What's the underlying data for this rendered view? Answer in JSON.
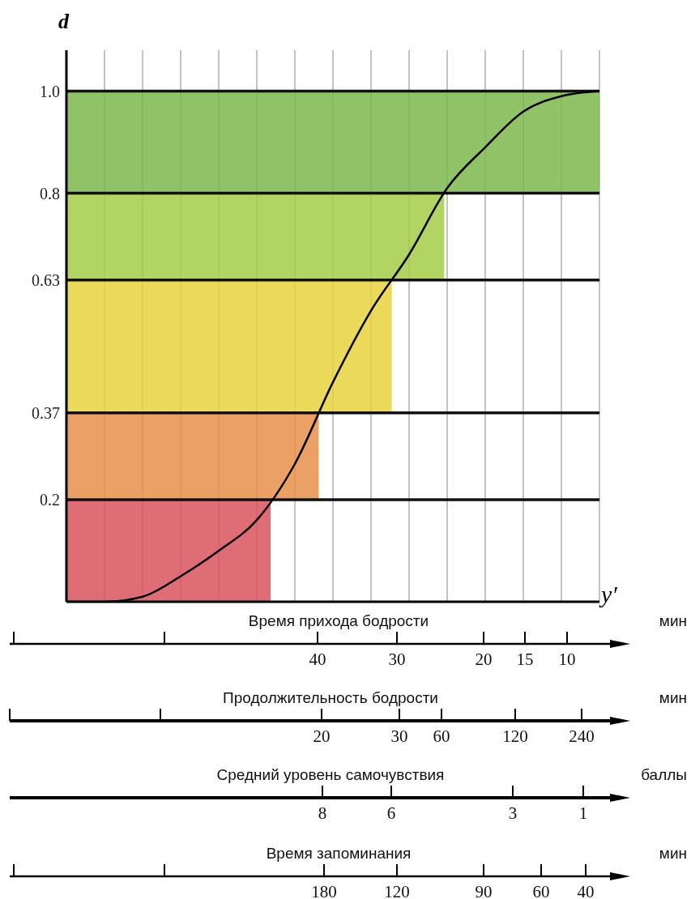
{
  "chart_data": {
    "type": "line",
    "ylabel": "d",
    "xlabel": "y′",
    "categories": [
      null,
      null,
      null,
      null,
      null,
      null,
      null,
      null,
      null,
      null,
      null,
      null,
      null,
      null,
      null
    ],
    "series": [
      {
        "color": "#000000",
        "values": [
          0,
          0,
          0.01,
          0.05,
          0.1,
          0.16,
          0.27,
          0.43,
          0.57,
          0.68,
          0.81,
          0.89,
          0.96,
          0.99,
          1.0
        ]
      }
    ],
    "ylim": [
      0,
      1.08
    ],
    "yticks": [
      {
        "value": 0,
        "label": null
      },
      0.2,
      0.37,
      0.63,
      0.8,
      {
        "value": 1.0,
        "label": "1.0"
      }
    ],
    "grid": true,
    "marker": "none",
    "line_style": "solid",
    "ref_lines": [
      {
        "axis": "y",
        "value": 0.2,
        "color": "#111111"
      },
      {
        "axis": "y",
        "value": 0.37,
        "color": "#111111"
      },
      {
        "axis": "y",
        "value": 0.63,
        "color": "#111111"
      },
      {
        "axis": "y",
        "value": 0.8,
        "color": "#111111"
      },
      {
        "axis": "y",
        "value": 1.0,
        "color": "#111111"
      }
    ],
    "bands": [
      {
        "axis": "y",
        "from": 0,
        "to": 0.2,
        "color": "#d9545e"
      },
      {
        "axis": "y",
        "from": 0.2,
        "to": 0.37,
        "color": "#e8914a"
      },
      {
        "axis": "y",
        "from": 0.37,
        "to": 0.63,
        "color": "#e8d23c"
      },
      {
        "axis": "y",
        "from": 0.63,
        "to": 0.8,
        "color": "#a3cc48"
      },
      {
        "axis": "y",
        "from": 0.8,
        "to": 1.0,
        "color": "#7cb84e"
      }
    ],
    "annotations": [
      "Время прихода бодрости",
      "мин",
      "40",
      "30",
      "20",
      "15",
      "10",
      "Продолжительность бодрости",
      "мин",
      "20",
      "30",
      "60",
      "120",
      "240",
      "Средний уровень самочувствия",
      "баллы",
      "8",
      "6",
      "3",
      "1",
      "Время запоминания",
      "мин",
      "180",
      "120",
      "90",
      "60",
      "40"
    ]
  }
}
